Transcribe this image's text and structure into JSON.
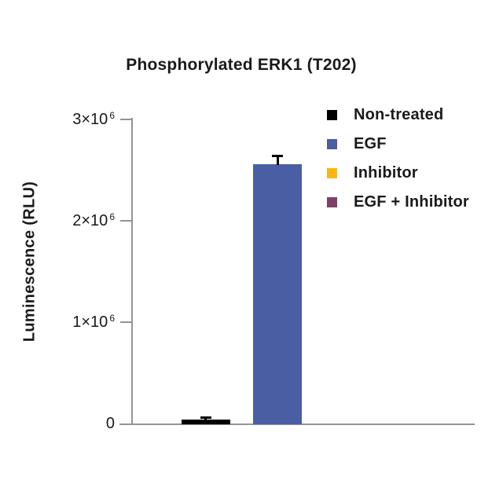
{
  "page": {
    "background": "#ffffff"
  },
  "chart_data": {
    "type": "bar",
    "title": "Phosphorylated ERK1 (T202)",
    "ylabel": "Luminescence (RLU)",
    "xlabel": "",
    "categories": [
      "Non-treated",
      "EGF",
      "Inhibitor",
      "EGF + Inhibitor"
    ],
    "values_rlu": [
      35000,
      2560000,
      0,
      0
    ],
    "error_rlu": [
      30000,
      80000,
      0,
      0
    ],
    "bar_colors": [
      "#000000",
      "#4A5EA4",
      "#FCB515",
      "#7D4168"
    ],
    "ylim": [
      0,
      3000000
    ],
    "yticks": [
      {
        "value": 0,
        "mantissa": "0",
        "exponent": ""
      },
      {
        "value": 1000000,
        "mantissa": "1×10",
        "exponent": "6"
      },
      {
        "value": 2000000,
        "mantissa": "2×10",
        "exponent": "6"
      },
      {
        "value": 3000000,
        "mantissa": "3×10",
        "exponent": "6"
      }
    ],
    "x_tick_labels": [],
    "grid": false,
    "legend": {
      "position": "upper-right",
      "entries": [
        {
          "label": "Non-treated",
          "color": "#000000"
        },
        {
          "label": "EGF",
          "color": "#4A5EA4"
        },
        {
          "label": "Inhibitor",
          "color": "#FCB515"
        },
        {
          "label": "EGF + Inhibitor",
          "color": "#7D4168"
        }
      ]
    },
    "colors": {
      "axis": "#949494",
      "text": "#1a1a1a",
      "error_bar": "#000000"
    }
  }
}
